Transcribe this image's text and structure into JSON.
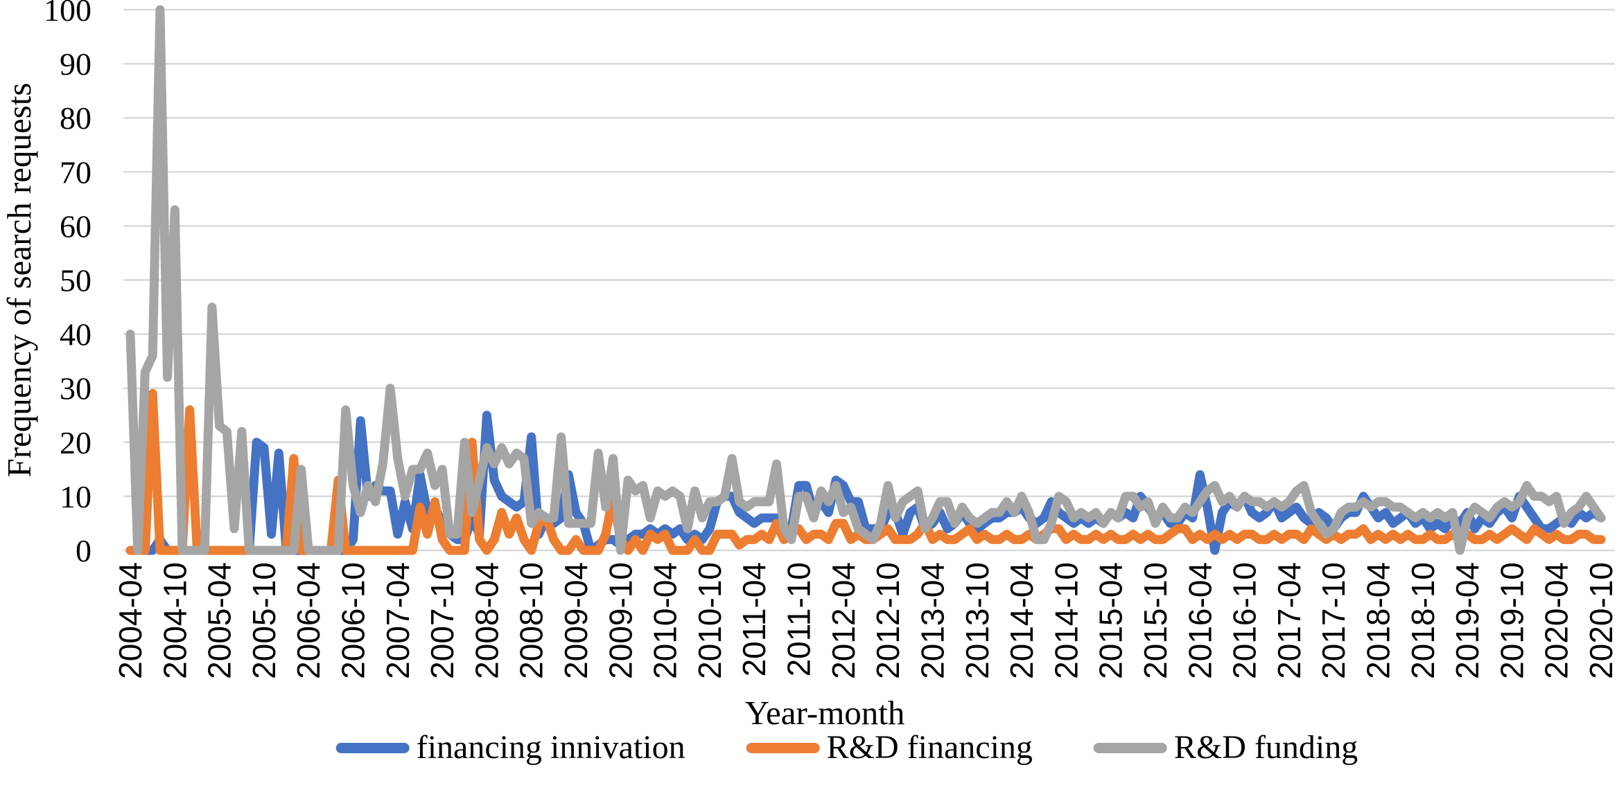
{
  "figure": {
    "y_axis_title": "Frequency of search requests",
    "x_axis_title": "Year-month"
  },
  "legend": [
    {
      "label": "financing innivation",
      "color": "#4472C4"
    },
    {
      "label": "R&D financing",
      "color": "#ED7D31"
    },
    {
      "label": "R&D funding",
      "color": "#A5A5A5"
    }
  ],
  "colors": {
    "gridline": "#D9D9D9",
    "text": "#000000",
    "background": "#FFFFFF",
    "series_blue": "#4472C4",
    "series_orange": "#ED7D31",
    "series_gray": "#A5A5A5"
  },
  "chart_data": {
    "type": "line",
    "title": "",
    "xlabel": "Year-month",
    "ylabel": "Frequency of search requests",
    "ylim": [
      0,
      100
    ],
    "ytick_step": 10,
    "grid": "horizontal",
    "legend_position": "bottom",
    "x_tick_every": 6,
    "x_tick_labels_shown": [
      "2004-04",
      "2004-10",
      "2005-04",
      "2005-10",
      "2006-04",
      "2006-10",
      "2007-04",
      "2007-10",
      "2008-04",
      "2008-10",
      "2009-04",
      "2009-10",
      "2010-04",
      "2010-10",
      "2011-04",
      "2011-10",
      "2012-04",
      "2012-10",
      "2013-04",
      "2013-10",
      "2014-04",
      "2014-10",
      "2015-04",
      "2015-10",
      "2016-04",
      "2016-10",
      "2017-04",
      "2017-10",
      "2018-04",
      "2018-10",
      "2019-04",
      "2019-10",
      "2020-04",
      "2020-10"
    ],
    "x": [
      "2004-04",
      "2004-05",
      "2004-06",
      "2004-07",
      "2004-08",
      "2004-09",
      "2004-10",
      "2004-11",
      "2004-12",
      "2005-01",
      "2005-02",
      "2005-03",
      "2005-04",
      "2005-05",
      "2005-06",
      "2005-07",
      "2005-08",
      "2005-09",
      "2005-10",
      "2005-11",
      "2005-12",
      "2006-01",
      "2006-02",
      "2006-03",
      "2006-04",
      "2006-05",
      "2006-06",
      "2006-07",
      "2006-08",
      "2006-09",
      "2006-10",
      "2006-11",
      "2006-12",
      "2007-01",
      "2007-02",
      "2007-03",
      "2007-04",
      "2007-05",
      "2007-06",
      "2007-07",
      "2007-08",
      "2007-09",
      "2007-10",
      "2007-11",
      "2007-12",
      "2008-01",
      "2008-02",
      "2008-03",
      "2008-04",
      "2008-05",
      "2008-06",
      "2008-07",
      "2008-08",
      "2008-09",
      "2008-10",
      "2008-11",
      "2008-12",
      "2009-01",
      "2009-02",
      "2009-03",
      "2009-04",
      "2009-05",
      "2009-06",
      "2009-07",
      "2009-08",
      "2009-09",
      "2009-10",
      "2009-11",
      "2009-12",
      "2010-01",
      "2010-02",
      "2010-03",
      "2010-04",
      "2010-05",
      "2010-06",
      "2010-07",
      "2010-08",
      "2010-09",
      "2010-10",
      "2010-11",
      "2010-12",
      "2011-01",
      "2011-02",
      "2011-03",
      "2011-04",
      "2011-05",
      "2011-06",
      "2011-07",
      "2011-08",
      "2011-09",
      "2011-10",
      "2011-11",
      "2011-12",
      "2012-01",
      "2012-02",
      "2012-03",
      "2012-04",
      "2012-05",
      "2012-06",
      "2012-07",
      "2012-08",
      "2012-09",
      "2012-10",
      "2012-11",
      "2012-12",
      "2013-01",
      "2013-02",
      "2013-03",
      "2013-04",
      "2013-05",
      "2013-06",
      "2013-07",
      "2013-08",
      "2013-09",
      "2013-10",
      "2013-11",
      "2013-12",
      "2014-01",
      "2014-02",
      "2014-03",
      "2014-04",
      "2014-05",
      "2014-06",
      "2014-07",
      "2014-08",
      "2014-09",
      "2014-10",
      "2014-11",
      "2014-12",
      "2015-01",
      "2015-02",
      "2015-03",
      "2015-04",
      "2015-05",
      "2015-06",
      "2015-07",
      "2015-08",
      "2015-09",
      "2015-10",
      "2015-11",
      "2015-12",
      "2016-01",
      "2016-02",
      "2016-03",
      "2016-04",
      "2016-05",
      "2016-06",
      "2016-07",
      "2016-08",
      "2016-09",
      "2016-10",
      "2016-11",
      "2016-12",
      "2017-01",
      "2017-02",
      "2017-03",
      "2017-04",
      "2017-05",
      "2017-06",
      "2017-07",
      "2017-08",
      "2017-09",
      "2017-10",
      "2017-11",
      "2017-12",
      "2018-01",
      "2018-02",
      "2018-03",
      "2018-04",
      "2018-05",
      "2018-06",
      "2018-07",
      "2018-08",
      "2018-09",
      "2018-10",
      "2018-11",
      "2018-12",
      "2019-01",
      "2019-02",
      "2019-03",
      "2019-04",
      "2019-05",
      "2019-06",
      "2019-07",
      "2019-08",
      "2019-09",
      "2019-10",
      "2019-11",
      "2019-12",
      "2020-01",
      "2020-02",
      "2020-03",
      "2020-04",
      "2020-05",
      "2020-06",
      "2020-07",
      "2020-08",
      "2020-09",
      "2020-10"
    ],
    "series": [
      {
        "name": "financing innivation",
        "color": "#4472C4",
        "values": [
          0,
          0,
          0,
          0,
          2,
          0,
          0,
          0,
          0,
          0,
          0,
          0,
          0,
          0,
          0,
          0,
          0,
          20,
          19,
          3,
          18,
          0,
          0,
          0,
          0,
          0,
          0,
          0,
          0,
          0,
          2,
          24,
          10,
          12,
          11,
          11,
          3,
          9,
          4,
          14,
          7,
          8,
          5,
          3,
          2,
          2,
          6,
          3,
          25,
          13,
          10,
          9,
          8,
          9,
          21,
          3,
          6,
          5,
          6,
          14,
          7,
          5,
          0,
          1,
          2,
          2,
          1,
          2,
          3,
          3,
          4,
          3,
          4,
          3,
          4,
          2,
          3,
          2,
          4,
          9,
          10,
          10,
          7,
          6,
          5,
          6,
          6,
          6,
          3,
          4,
          12,
          12,
          7,
          9,
          7,
          13,
          12,
          9,
          9,
          4,
          4,
          4,
          7,
          7,
          3,
          7,
          8,
          4,
          5,
          7,
          4,
          5,
          7,
          5,
          4,
          5,
          6,
          6,
          7,
          7,
          8,
          6,
          5,
          6,
          9,
          7,
          6,
          5,
          6,
          5,
          6,
          5,
          7,
          6,
          7,
          6,
          10,
          8,
          6,
          7,
          5,
          5,
          7,
          6,
          14,
          8,
          0,
          7,
          9,
          8,
          10,
          7,
          6,
          7,
          9,
          6,
          7,
          8,
          6,
          5,
          7,
          6,
          4,
          6,
          7,
          7,
          10,
          8,
          6,
          7,
          5,
          6,
          7,
          5,
          6,
          4,
          5,
          4,
          6,
          5,
          7,
          4,
          6,
          5,
          7,
          8,
          6,
          10,
          8,
          6,
          4,
          4,
          5,
          6,
          5,
          7,
          6,
          7,
          6
        ]
      },
      {
        "name": "R&D financing",
        "color": "#ED7D31",
        "values": [
          0,
          0,
          0,
          29,
          0,
          0,
          0,
          0,
          26,
          0,
          0,
          0,
          0,
          0,
          0,
          0,
          0,
          0,
          0,
          0,
          0,
          0,
          17,
          0,
          0,
          0,
          0,
          0,
          13,
          0,
          0,
          0,
          0,
          0,
          0,
          0,
          0,
          0,
          0,
          8,
          3,
          9,
          2,
          0,
          0,
          0,
          20,
          2,
          0,
          2,
          7,
          3,
          6,
          2,
          0,
          5,
          6,
          2,
          0,
          0,
          2,
          0,
          0,
          0,
          3,
          10,
          2,
          0,
          2,
          0,
          3,
          2,
          3,
          0,
          0,
          0,
          2,
          0,
          0,
          3,
          3,
          3,
          1,
          2,
          2,
          3,
          2,
          5,
          2,
          4,
          4,
          2,
          3,
          3,
          2,
          5,
          5,
          2,
          3,
          2,
          2,
          3,
          4,
          2,
          2,
          2,
          3,
          5,
          2,
          3,
          2,
          2,
          3,
          4,
          2,
          3,
          2,
          2,
          3,
          2,
          2,
          3,
          2,
          3,
          4,
          4,
          2,
          3,
          2,
          2,
          3,
          2,
          3,
          2,
          2,
          3,
          2,
          3,
          2,
          2,
          3,
          4,
          4,
          2,
          3,
          2,
          3,
          2,
          3,
          2,
          3,
          3,
          2,
          2,
          3,
          2,
          3,
          3,
          2,
          4,
          3,
          2,
          3,
          2,
          3,
          3,
          4,
          2,
          3,
          2,
          3,
          2,
          3,
          2,
          2,
          3,
          2,
          2,
          3,
          2,
          3,
          2,
          2,
          3,
          2,
          3,
          4,
          3,
          2,
          4,
          3,
          2,
          3,
          2,
          2,
          3,
          3,
          2,
          2
        ]
      },
      {
        "name": "R&D funding",
        "color": "#A5A5A5",
        "values": [
          40,
          0,
          33,
          36,
          100,
          32,
          63,
          0,
          0,
          0,
          0,
          45,
          23,
          22,
          4,
          22,
          0,
          0,
          0,
          0,
          0,
          0,
          0,
          15,
          0,
          0,
          0,
          0,
          0,
          26,
          12,
          7,
          12,
          9,
          16,
          30,
          17,
          10,
          15,
          15,
          18,
          12,
          15,
          3,
          3,
          20,
          7,
          13,
          19,
          16,
          19,
          16,
          18,
          17,
          5,
          7,
          6,
          6,
          21,
          5,
          5,
          5,
          5,
          18,
          8,
          17,
          0,
          13,
          11,
          12,
          6,
          11,
          10,
          11,
          10,
          4,
          11,
          6,
          9,
          9,
          10,
          17,
          9,
          8,
          9,
          9,
          9,
          16,
          4,
          2,
          10,
          10,
          6,
          11,
          9,
          12,
          7,
          8,
          4,
          3,
          2,
          5,
          12,
          6,
          9,
          10,
          11,
          4,
          6,
          9,
          9,
          5,
          8,
          6,
          5,
          6,
          7,
          7,
          9,
          7,
          10,
          7,
          2,
          2,
          5,
          10,
          9,
          6,
          7,
          6,
          7,
          5,
          7,
          6,
          10,
          10,
          8,
          9,
          5,
          8,
          6,
          6,
          8,
          7,
          9,
          11,
          12,
          9,
          10,
          8,
          10,
          9,
          9,
          8,
          9,
          8,
          9,
          11,
          12,
          7,
          5,
          3,
          4,
          7,
          8,
          8,
          9,
          8,
          9,
          9,
          8,
          8,
          7,
          6,
          7,
          6,
          7,
          6,
          7,
          0,
          6,
          8,
          7,
          6,
          8,
          9,
          8,
          9,
          12,
          10,
          10,
          9,
          10,
          5,
          7,
          8,
          10,
          8,
          6
        ]
      }
    ]
  }
}
